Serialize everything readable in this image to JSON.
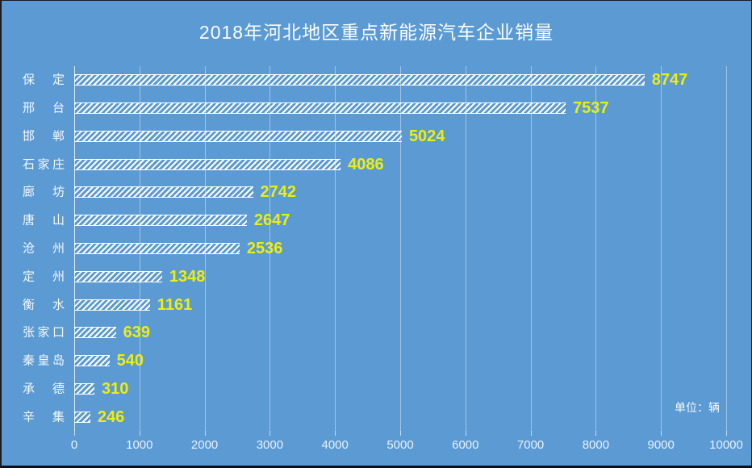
{
  "title": "2018年河北地区重点新能源汽车企业销量",
  "unit_label": "单位：辆",
  "colors": {
    "background": "#5b9ad3",
    "bar_hatch": "#ffffff",
    "value_label": "#eded12",
    "category_text": "#f4f8fc",
    "tick_text": "#e9f1fa",
    "title_text": "#fcfdff",
    "gridline": "rgba(255,255,255,0.42)"
  },
  "chart_data": {
    "type": "bar",
    "orientation": "horizontal",
    "title": "2018年河北地区重点新能源汽车企业销量",
    "categories": [
      "保定",
      "邢台",
      "邯郸",
      "石家庄",
      "廊坊",
      "唐山",
      "沧州",
      "定州",
      "衡水",
      "张家口",
      "秦皇岛",
      "承德",
      "辛集"
    ],
    "values": [
      8747,
      7537,
      5024,
      4086,
      2742,
      2647,
      2536,
      1348,
      1161,
      639,
      540,
      310,
      246
    ],
    "xlabel": "",
    "ylabel": "",
    "xlim": [
      0,
      10000
    ],
    "x_ticks": [
      0,
      1000,
      2000,
      3000,
      4000,
      5000,
      6000,
      7000,
      8000,
      9000,
      10000
    ],
    "grid": true,
    "legend": false,
    "bar_style": "white diagonal hatch",
    "unit_note": "单位：辆"
  }
}
